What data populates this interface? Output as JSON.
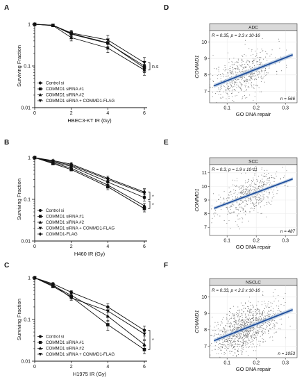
{
  "chart_data": [
    {
      "panel": "A",
      "type": "line",
      "xlabel": "HBEC3-KT IR (Gy)",
      "ylabel": "Surviving Fraction",
      "xlim": [
        0,
        6
      ],
      "ylim": [
        0.01,
        1
      ],
      "log_y": true,
      "x_ticks": [
        "0",
        "2",
        "4",
        "6"
      ],
      "y_ticks": [
        "0.01",
        "0.1",
        "1"
      ],
      "annotation": "n.s",
      "x": [
        0,
        1,
        2,
        4,
        6
      ],
      "series": [
        {
          "name": "Control si",
          "marker": "circle",
          "values": [
            1,
            0.95,
            0.58,
            0.35,
            0.1
          ],
          "err": [
            0.03,
            0.04,
            0.08,
            0.08,
            0.03
          ]
        },
        {
          "name": "COMMD1 siRNA #1",
          "marker": "square",
          "values": [
            1,
            0.94,
            0.6,
            0.36,
            0.09
          ],
          "err": [
            0.03,
            0.04,
            0.08,
            0.08,
            0.02
          ]
        },
        {
          "name": "COMMD1 siRNA #2",
          "marker": "triangle-up",
          "values": [
            1,
            0.93,
            0.48,
            0.27,
            0.08
          ],
          "err": [
            0.03,
            0.04,
            0.08,
            0.06,
            0.02
          ]
        },
        {
          "name": "COMMD1 siRNA + COMMD1-FLAG",
          "marker": "triangle-down",
          "values": [
            1,
            0.95,
            0.62,
            0.42,
            0.12
          ],
          "err": [
            0.03,
            0.05,
            0.1,
            0.12,
            0.04
          ]
        }
      ]
    },
    {
      "panel": "B",
      "type": "line",
      "xlabel": "H460 IR (Gy)",
      "ylabel": "Surviving Fraction",
      "xlim": [
        0,
        6
      ],
      "ylim": [
        0.01,
        1
      ],
      "log_y": true,
      "x_ticks": [
        "0",
        "2",
        "4",
        "6"
      ],
      "y_ticks": [
        "0.01",
        "0.1",
        "1"
      ],
      "annotation": "*",
      "x": [
        0,
        1,
        2,
        4,
        6
      ],
      "series": [
        {
          "name": "Control si",
          "marker": "circle",
          "values": [
            1,
            0.78,
            0.62,
            0.26,
            0.11
          ],
          "err": [
            0.02,
            0.04,
            0.04,
            0.03,
            0.02
          ]
        },
        {
          "name": "COMMD1 siRNA #1",
          "marker": "square",
          "values": [
            1,
            0.72,
            0.52,
            0.2,
            0.06
          ],
          "err": [
            0.02,
            0.04,
            0.04,
            0.03,
            0.01
          ]
        },
        {
          "name": "COMMD1 siRNA #2",
          "marker": "triangle-up",
          "values": [
            1,
            0.75,
            0.56,
            0.22,
            0.07
          ],
          "err": [
            0.02,
            0.04,
            0.04,
            0.03,
            0.01
          ]
        },
        {
          "name": "COMMD1 siRNA + COMMD1-FLAG",
          "marker": "triangle-down",
          "values": [
            1,
            0.82,
            0.66,
            0.3,
            0.14
          ],
          "err": [
            0.02,
            0.04,
            0.05,
            0.03,
            0.03
          ]
        },
        {
          "name": "COMMD1-FLAG",
          "marker": "diamond",
          "values": [
            1,
            0.85,
            0.7,
            0.32,
            0.15
          ],
          "err": [
            0.02,
            0.04,
            0.05,
            0.04,
            0.03
          ]
        }
      ]
    },
    {
      "panel": "C",
      "type": "line",
      "xlabel": "H1975 IR (Gy)",
      "ylabel": "Surviving Fraction",
      "xlim": [
        0,
        6
      ],
      "ylim": [
        0.01,
        1
      ],
      "log_y": true,
      "x_ticks": [
        "0",
        "2",
        "4",
        "6"
      ],
      "y_ticks": [
        "0.01",
        "0.1",
        "1"
      ],
      "annotation": "*",
      "x": [
        0,
        1,
        2,
        4,
        6
      ],
      "series": [
        {
          "name": "Control si",
          "marker": "circle",
          "values": [
            1,
            0.72,
            0.45,
            0.2,
            0.055
          ],
          "err": [
            0.02,
            0.04,
            0.04,
            0.04,
            0.015
          ]
        },
        {
          "name": "COMMD1 siRNA #1",
          "marker": "square",
          "values": [
            1,
            0.62,
            0.35,
            0.075,
            0.019
          ],
          "err": [
            0.02,
            0.04,
            0.04,
            0.02,
            0.004
          ]
        },
        {
          "name": "COMMD1 siRNA #2",
          "marker": "triangle-up",
          "values": [
            1,
            0.65,
            0.38,
            0.12,
            0.025
          ],
          "err": [
            0.02,
            0.04,
            0.04,
            0.03,
            0.006
          ]
        },
        {
          "name": "COMMD1 siRNA + COMMD1-FLAG",
          "marker": "triangle-down",
          "values": [
            1,
            0.68,
            0.33,
            0.16,
            0.045
          ],
          "err": [
            0.02,
            0.04,
            0.04,
            0.04,
            0.012
          ]
        }
      ]
    },
    {
      "panel": "D",
      "type": "scatter",
      "strip_title": "ADC",
      "stat_text": "R = 0.35, p = 3.3  x 10-16",
      "n_text": "n = 566",
      "n_points": 566,
      "xlabel": "GO DNA repair",
      "ylabel": "COMMD1",
      "xlim": [
        0.04,
        0.34
      ],
      "ylim": [
        6.3,
        10.7
      ],
      "x_ticks": [
        0.1,
        0.2,
        0.3
      ],
      "y_ticks": [
        7,
        8,
        9,
        10
      ],
      "fit": {
        "intercept": 6.95,
        "slope": 7.0
      },
      "x_dist": {
        "mean": 0.15,
        "sd": 0.055
      },
      "residual_sd": 0.65,
      "line_color": "#1f4e9c",
      "seed": 11
    },
    {
      "panel": "E",
      "type": "scatter",
      "strip_title": "SCC",
      "stat_text": "R = 0.3, p = 1.9  x 10-11",
      "n_text": "n = 487",
      "n_points": 487,
      "xlabel": "GO DNA repair",
      "ylabel": "COMMD1",
      "xlim": [
        0.04,
        0.34
      ],
      "ylim": [
        6.4,
        11.6
      ],
      "x_ticks": [
        0.1,
        0.2,
        0.3
      ],
      "y_ticks": [
        7,
        8,
        9,
        10,
        11
      ],
      "fit": {
        "intercept": 7.95,
        "slope": 8.0
      },
      "x_dist": {
        "mean": 0.17,
        "sd": 0.055
      },
      "residual_sd": 0.75,
      "line_color": "#1f4e9c",
      "seed": 23
    },
    {
      "panel": "F",
      "type": "scatter",
      "strip_title": "NSCLC",
      "stat_text": "R = 0.33, p < 2.2  x 10-16",
      "n_text": "n = 1053",
      "n_points": 1053,
      "xlabel": "GO DNA repair",
      "ylabel": "COMMD1",
      "xlim": [
        0.04,
        0.34
      ],
      "ylim": [
        6.3,
        10.7
      ],
      "x_ticks": [
        0.1,
        0.2,
        0.3
      ],
      "y_ticks": [
        7,
        8,
        9,
        10
      ],
      "fit": {
        "intercept": 6.95,
        "slope": 7.0
      },
      "x_dist": {
        "mean": 0.16,
        "sd": 0.055
      },
      "residual_sd": 0.68,
      "line_color": "#1f4e9c",
      "seed": 37
    }
  ]
}
